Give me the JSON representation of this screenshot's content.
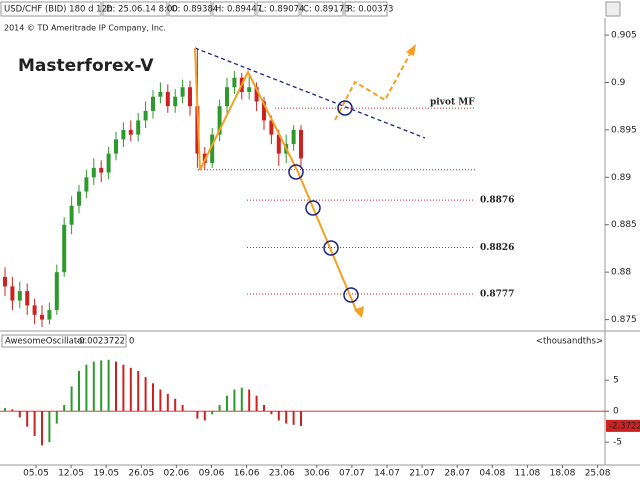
{
  "header": {
    "symbol": "USD/CHF (BID) 180 d 12h",
    "date": "D: 25.06.14 8:00",
    "open": "O: 0.89384",
    "high": "H: 0.89447",
    "low": "L: 0.89074",
    "close": "C: 0.89173",
    "range": "R: 0.00373"
  },
  "xticks": [
    "05.05",
    "12.05",
    "19.05",
    "26.05",
    "02.06",
    "09.06",
    "16.06",
    "23.06",
    "30.06",
    "07.07",
    "14.07",
    "21.07",
    "28.07",
    "04.08",
    "11.08",
    "18.08",
    "25.08"
  ],
  "chart_data": [
    {
      "type": "candlestick",
      "title": "Masterforex-V",
      "copyright": "2014 © TD Ameritrade IP Company, Inc.",
      "open": [
        0.8795,
        0.8785,
        0.877,
        0.878,
        0.8765,
        0.8755,
        0.875,
        0.876,
        0.88,
        0.885,
        0.887,
        0.8885,
        0.89,
        0.891,
        0.8905,
        0.8925,
        0.894,
        0.895,
        0.8945,
        0.896,
        0.897,
        0.8985,
        0.899,
        0.8975,
        0.8985,
        0.8995,
        0.8975,
        0.8925,
        0.8915,
        0.8945,
        0.8975,
        0.8995,
        0.9005,
        0.899,
        0.8995,
        0.898,
        0.896,
        0.8945,
        0.8925,
        0.8935,
        0.895
      ],
      "high": [
        0.8805,
        0.8795,
        0.879,
        0.8788,
        0.8772,
        0.8765,
        0.8768,
        0.8808,
        0.8858,
        0.888,
        0.8892,
        0.8908,
        0.892,
        0.8918,
        0.8932,
        0.8948,
        0.8958,
        0.896,
        0.8968,
        0.898,
        0.8992,
        0.9,
        0.8998,
        0.8993,
        0.9003,
        0.9002,
        0.9035,
        0.8932,
        0.8952,
        0.8982,
        0.9005,
        0.9012,
        0.901,
        0.9008,
        0.9,
        0.8985,
        0.8965,
        0.895,
        0.8945,
        0.8955,
        0.8955
      ],
      "low": [
        0.8775,
        0.876,
        0.8762,
        0.8755,
        0.8745,
        0.8742,
        0.8745,
        0.8755,
        0.8795,
        0.884,
        0.8862,
        0.8878,
        0.8892,
        0.8895,
        0.8898,
        0.8918,
        0.8932,
        0.8938,
        0.8938,
        0.8952,
        0.8962,
        0.8978,
        0.8968,
        0.8968,
        0.8978,
        0.8965,
        0.891,
        0.8908,
        0.891,
        0.8938,
        0.8968,
        0.8988,
        0.8982,
        0.8982,
        0.897,
        0.895,
        0.8935,
        0.8912,
        0.8915,
        0.8928,
        0.8912
      ],
      "close": [
        0.8785,
        0.877,
        0.878,
        0.8765,
        0.8755,
        0.875,
        0.876,
        0.88,
        0.885,
        0.887,
        0.8885,
        0.89,
        0.891,
        0.8905,
        0.8925,
        0.894,
        0.895,
        0.8945,
        0.896,
        0.897,
        0.8985,
        0.899,
        0.8975,
        0.8985,
        0.8995,
        0.8975,
        0.8925,
        0.8915,
        0.8945,
        0.8975,
        0.8995,
        0.9005,
        0.899,
        0.8995,
        0.898,
        0.896,
        0.8945,
        0.8925,
        0.8935,
        0.895,
        0.892
      ],
      "up_color": "#2e9a2e",
      "down_color": "#cc2222",
      "ylim": [
        0.8739,
        0.9068
      ],
      "yticks": [
        0.905,
        0.9,
        0.895,
        0.89,
        0.885,
        0.88,
        0.875
      ],
      "levels": [
        {
          "value": 0.8973,
          "label": "pivot MF"
        },
        {
          "value": 0.8908
        },
        {
          "value": 0.8876
        },
        {
          "value": 0.8826
        },
        {
          "value": 0.8777
        }
      ],
      "level_color": "#cc2222"
    },
    {
      "type": "bar",
      "name": "AwesomeOscillator",
      "value_label": "-0.0023722",
      "extra": "0",
      "unit": "<thousandths>",
      "values": [
        0.5,
        0.3,
        -1,
        -2.5,
        -4,
        -5.5,
        -5,
        -2,
        1,
        4,
        6.5,
        7.5,
        8,
        8.2,
        8.3,
        8,
        7.5,
        7,
        6.5,
        5.5,
        4.5,
        3.5,
        2.8,
        2,
        1,
        0,
        -1.2,
        -1.5,
        -0.5,
        1,
        2.5,
        3.5,
        3.8,
        3.5,
        2.5,
        1,
        -0.5,
        -1.5,
        -2,
        -2.2,
        -2.3722
      ],
      "up_color": "#2e9a2e",
      "down_color": "#cc2222",
      "ylim": [
        -8.2,
        10.2
      ],
      "yticks": [
        5,
        0,
        -5
      ]
    }
  ]
}
